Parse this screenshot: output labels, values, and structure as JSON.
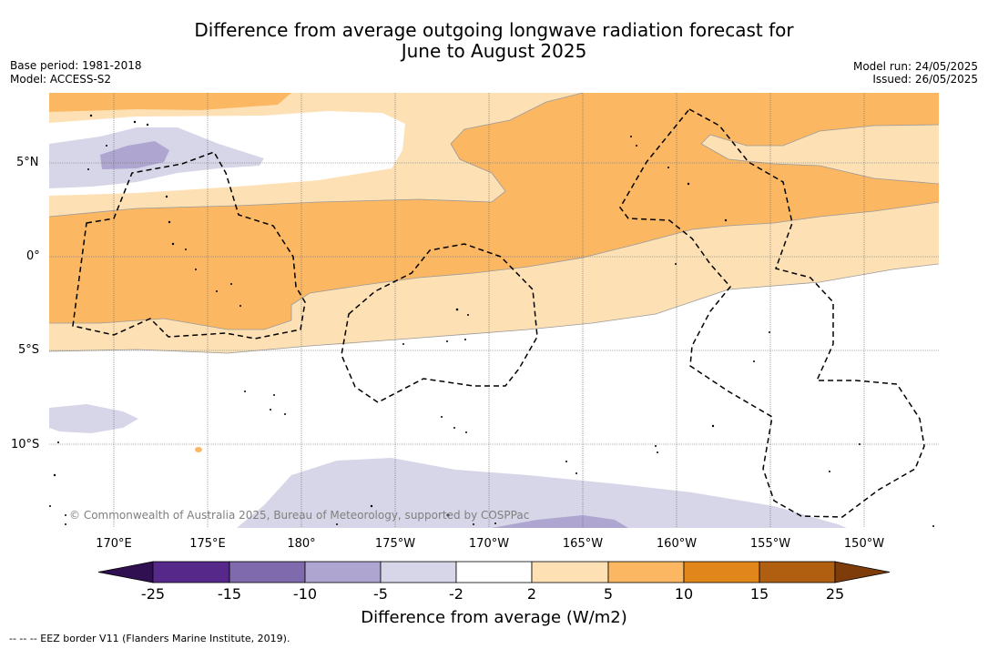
{
  "title_line1": "Difference from average outgoing longwave radiation forecast for",
  "title_line2": "June to August 2025",
  "base_period": "Base period: 1981-2018",
  "model": "Model: ACCESS-S2",
  "model_run": "Model run: 24/05/2025",
  "issued": "Issued: 26/05/2025",
  "copyright": "© Commonwealth of Australia 2025, Bureau of Meteorology, supported by COSPPac",
  "lon_ticks": [
    "170°E",
    "175°E",
    "180°",
    "175°W",
    "170°W",
    "165°W",
    "160°W",
    "155°W",
    "150°W"
  ],
  "lat_ticks": [
    "5°N",
    "0°",
    "5°S",
    "10°S"
  ],
  "colorbar": {
    "label": "Difference from average (W/m2)",
    "ticks": [
      "-25",
      "-15",
      "-10",
      "-5",
      "-2",
      "2",
      "5",
      "10",
      "15",
      "25"
    ],
    "colors": [
      "#301050",
      "#56288a",
      "#7e6aac",
      "#aea5d0",
      "#d6d6e8",
      "#ffffff",
      "#fde0b4",
      "#fbb762",
      "#e0861a",
      "#b05e10",
      "#7e3c0a"
    ]
  },
  "footnote": "-- -- -- EEZ border V11 (Flanders Marine Institute, 2019)."
}
